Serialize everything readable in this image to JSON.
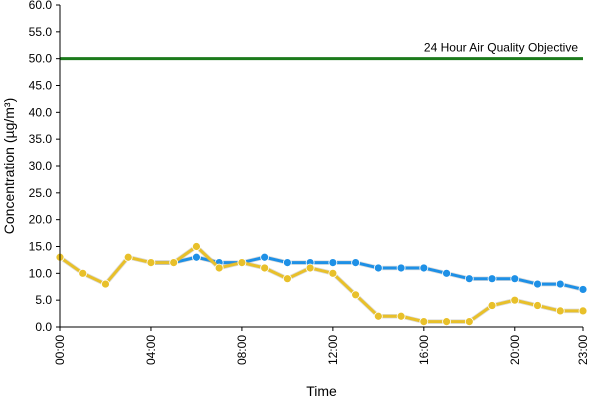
{
  "chart_data": {
    "type": "line",
    "title": "",
    "xlabel": "Time",
    "ylabel": "Concentration (µg/m³)",
    "ylim": [
      0,
      60
    ],
    "y_ticks": [
      "0.0",
      "5.0",
      "10.0",
      "15.0",
      "20.0",
      "25.0",
      "30.0",
      "35.0",
      "40.0",
      "45.0",
      "50.0",
      "55.0",
      "60.0"
    ],
    "x_range": [
      0,
      23
    ],
    "x_ticks": [
      {
        "hour": 0,
        "label": "00:00"
      },
      {
        "hour": 4,
        "label": "04:00"
      },
      {
        "hour": 8,
        "label": "08:00"
      },
      {
        "hour": 12,
        "label": "12:00"
      },
      {
        "hour": 16,
        "label": "16:00"
      },
      {
        "hour": 20,
        "label": "20:00"
      },
      {
        "hour": 23,
        "label": "23:00"
      }
    ],
    "grid": false,
    "legend": "none",
    "reference_line": {
      "value": 50,
      "label": "24 Hour Air Quality Objective",
      "color": "#1b7a1b"
    },
    "series": [
      {
        "color": "#1e90e6",
        "x": [
          4,
          5,
          6,
          7,
          8,
          9,
          10,
          11,
          12,
          13,
          14,
          15,
          16,
          17,
          18,
          19,
          20,
          21,
          22,
          23
        ],
        "values": [
          12,
          12,
          13,
          12,
          12,
          13,
          12,
          12,
          12,
          12,
          11,
          11,
          11,
          10,
          9,
          9,
          9,
          8,
          8,
          7
        ]
      },
      {
        "color": "#e8c02a",
        "x": [
          0,
          1,
          2,
          3,
          4,
          5,
          6,
          7,
          8,
          9,
          10,
          11,
          12,
          13,
          14,
          15,
          16,
          17,
          18,
          19,
          20,
          21,
          22,
          23
        ],
        "values": [
          13,
          10,
          8,
          13,
          12,
          12,
          15,
          11,
          12,
          11,
          9,
          11,
          10,
          6,
          2,
          2,
          1,
          1,
          1,
          4,
          5,
          4,
          3,
          3
        ]
      }
    ]
  }
}
